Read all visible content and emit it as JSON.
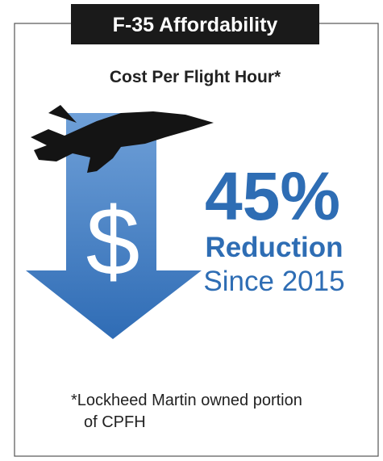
{
  "header": {
    "title": "F-35 Affordability"
  },
  "subtitle": "Cost Per Flight Hour*",
  "icon_text": "$",
  "stat": {
    "value": "45%",
    "label": "Reduction",
    "since": "Since 2015"
  },
  "footnote": {
    "lines": [
      "*Lockheed Martin owned portion",
      "of CPFH"
    ]
  }
}
